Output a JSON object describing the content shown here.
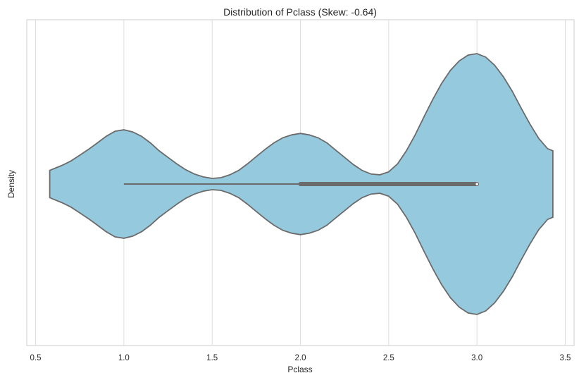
{
  "chart_data": {
    "type": "violin",
    "title": "Distribution of Pclass (Skew: -0.64)",
    "xlabel": "Pclass",
    "ylabel": "Density",
    "xlim": [
      0.45,
      3.55
    ],
    "xticks": [
      "0.5",
      "1.0",
      "1.5",
      "2.0",
      "2.5",
      "3.0",
      "3.5"
    ],
    "grid": "vertical",
    "fill_color": "#95c9de",
    "edge_color": "#6b6b6b",
    "box": {
      "whisker_low": 1.0,
      "q1": 2.0,
      "median": 3.0,
      "q3": 3.0,
      "whisker_high": 3.0
    },
    "density_profile": [
      [
        0.58,
        0.11
      ],
      [
        0.6,
        0.13
      ],
      [
        0.65,
        0.18
      ],
      [
        0.7,
        0.24
      ],
      [
        0.75,
        0.32
      ],
      [
        0.8,
        0.4
      ],
      [
        0.85,
        0.49
      ],
      [
        0.9,
        0.58
      ],
      [
        0.95,
        0.65
      ],
      [
        1.0,
        0.67
      ],
      [
        1.05,
        0.64
      ],
      [
        1.1,
        0.58
      ],
      [
        1.15,
        0.49
      ],
      [
        1.2,
        0.38
      ],
      [
        1.25,
        0.29
      ],
      [
        1.3,
        0.2
      ],
      [
        1.35,
        0.12
      ],
      [
        1.4,
        0.06
      ],
      [
        1.45,
        0.02
      ],
      [
        1.5,
        0.0
      ],
      [
        1.55,
        0.01
      ],
      [
        1.6,
        0.05
      ],
      [
        1.65,
        0.11
      ],
      [
        1.7,
        0.2
      ],
      [
        1.75,
        0.3
      ],
      [
        1.8,
        0.4
      ],
      [
        1.85,
        0.49
      ],
      [
        1.9,
        0.56
      ],
      [
        1.95,
        0.6
      ],
      [
        2.0,
        0.62
      ],
      [
        2.05,
        0.6
      ],
      [
        2.1,
        0.56
      ],
      [
        2.15,
        0.49
      ],
      [
        2.2,
        0.39
      ],
      [
        2.25,
        0.29
      ],
      [
        2.3,
        0.19
      ],
      [
        2.35,
        0.11
      ],
      [
        2.4,
        0.06
      ],
      [
        2.45,
        0.05
      ],
      [
        2.5,
        0.09
      ],
      [
        2.55,
        0.2
      ],
      [
        2.6,
        0.38
      ],
      [
        2.65,
        0.6
      ],
      [
        2.7,
        0.85
      ],
      [
        2.75,
        1.09
      ],
      [
        2.8,
        1.31
      ],
      [
        2.85,
        1.49
      ],
      [
        2.9,
        1.62
      ],
      [
        2.95,
        1.7
      ],
      [
        3.0,
        1.72
      ],
      [
        3.05,
        1.67
      ],
      [
        3.1,
        1.56
      ],
      [
        3.15,
        1.4
      ],
      [
        3.2,
        1.2
      ],
      [
        3.25,
        0.97
      ],
      [
        3.3,
        0.75
      ],
      [
        3.35,
        0.55
      ],
      [
        3.4,
        0.41
      ],
      [
        3.43,
        0.38
      ]
    ]
  }
}
